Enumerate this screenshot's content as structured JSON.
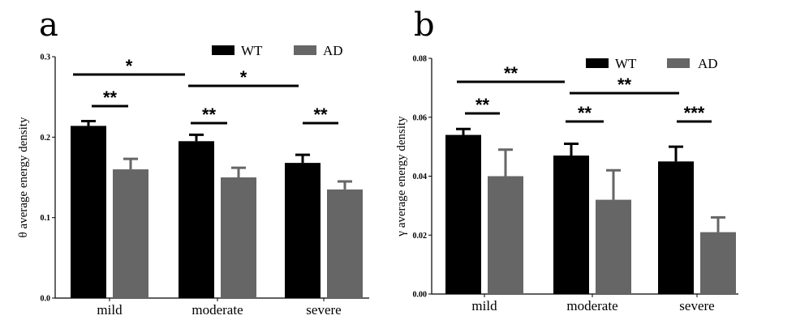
{
  "chart_data": [
    {
      "type": "bar",
      "panel": "a",
      "ylabel": "θ average energy density",
      "xlabel": "",
      "ylim": [
        0,
        0.3
      ],
      "yticks": [
        "0.0",
        "0.1",
        "0.2",
        "0.3"
      ],
      "categories": [
        "mild",
        "moderate",
        "severe"
      ],
      "series": [
        {
          "name": "WT",
          "color": "#000000",
          "values": [
            0.214,
            0.195,
            0.168
          ],
          "errors": [
            0.006,
            0.008,
            0.01
          ]
        },
        {
          "name": "AD",
          "color": "#666666",
          "values": [
            0.16,
            0.15,
            0.135
          ],
          "errors": [
            0.013,
            0.012,
            0.01
          ]
        }
      ],
      "legend": "top-right",
      "significance": [
        {
          "label": "**",
          "between": [
            "mild WT",
            "mild AD"
          ]
        },
        {
          "label": "**",
          "between": [
            "moderate WT",
            "moderate AD"
          ]
        },
        {
          "label": "**",
          "between": [
            "severe WT",
            "severe AD"
          ]
        },
        {
          "label": "*",
          "between": [
            "mild",
            "moderate"
          ]
        },
        {
          "label": "*",
          "between": [
            "moderate",
            "severe"
          ]
        }
      ]
    },
    {
      "type": "bar",
      "panel": "b",
      "ylabel": "γ average energy density",
      "xlabel": "",
      "ylim": [
        0,
        0.08
      ],
      "yticks": [
        "0.00",
        "0.02",
        "0.04",
        "0.06",
        "0.08"
      ],
      "categories": [
        "mild",
        "moderate",
        "severe"
      ],
      "series": [
        {
          "name": "WT",
          "color": "#000000",
          "values": [
            0.054,
            0.047,
            0.045
          ],
          "errors": [
            0.002,
            0.004,
            0.005
          ]
        },
        {
          "name": "AD",
          "color": "#666666",
          "values": [
            0.04,
            0.032,
            0.021
          ],
          "errors": [
            0.009,
            0.01,
            0.005
          ]
        }
      ],
      "legend": "top-right",
      "significance": [
        {
          "label": "**",
          "between": [
            "mild WT",
            "mild AD"
          ]
        },
        {
          "label": "**",
          "between": [
            "moderate WT",
            "moderate AD"
          ]
        },
        {
          "label": "***",
          "between": [
            "severe WT",
            "severe AD"
          ]
        },
        {
          "label": "**",
          "between": [
            "mild",
            "moderate"
          ]
        },
        {
          "label": "**",
          "between": [
            "moderate",
            "severe"
          ]
        }
      ]
    }
  ]
}
